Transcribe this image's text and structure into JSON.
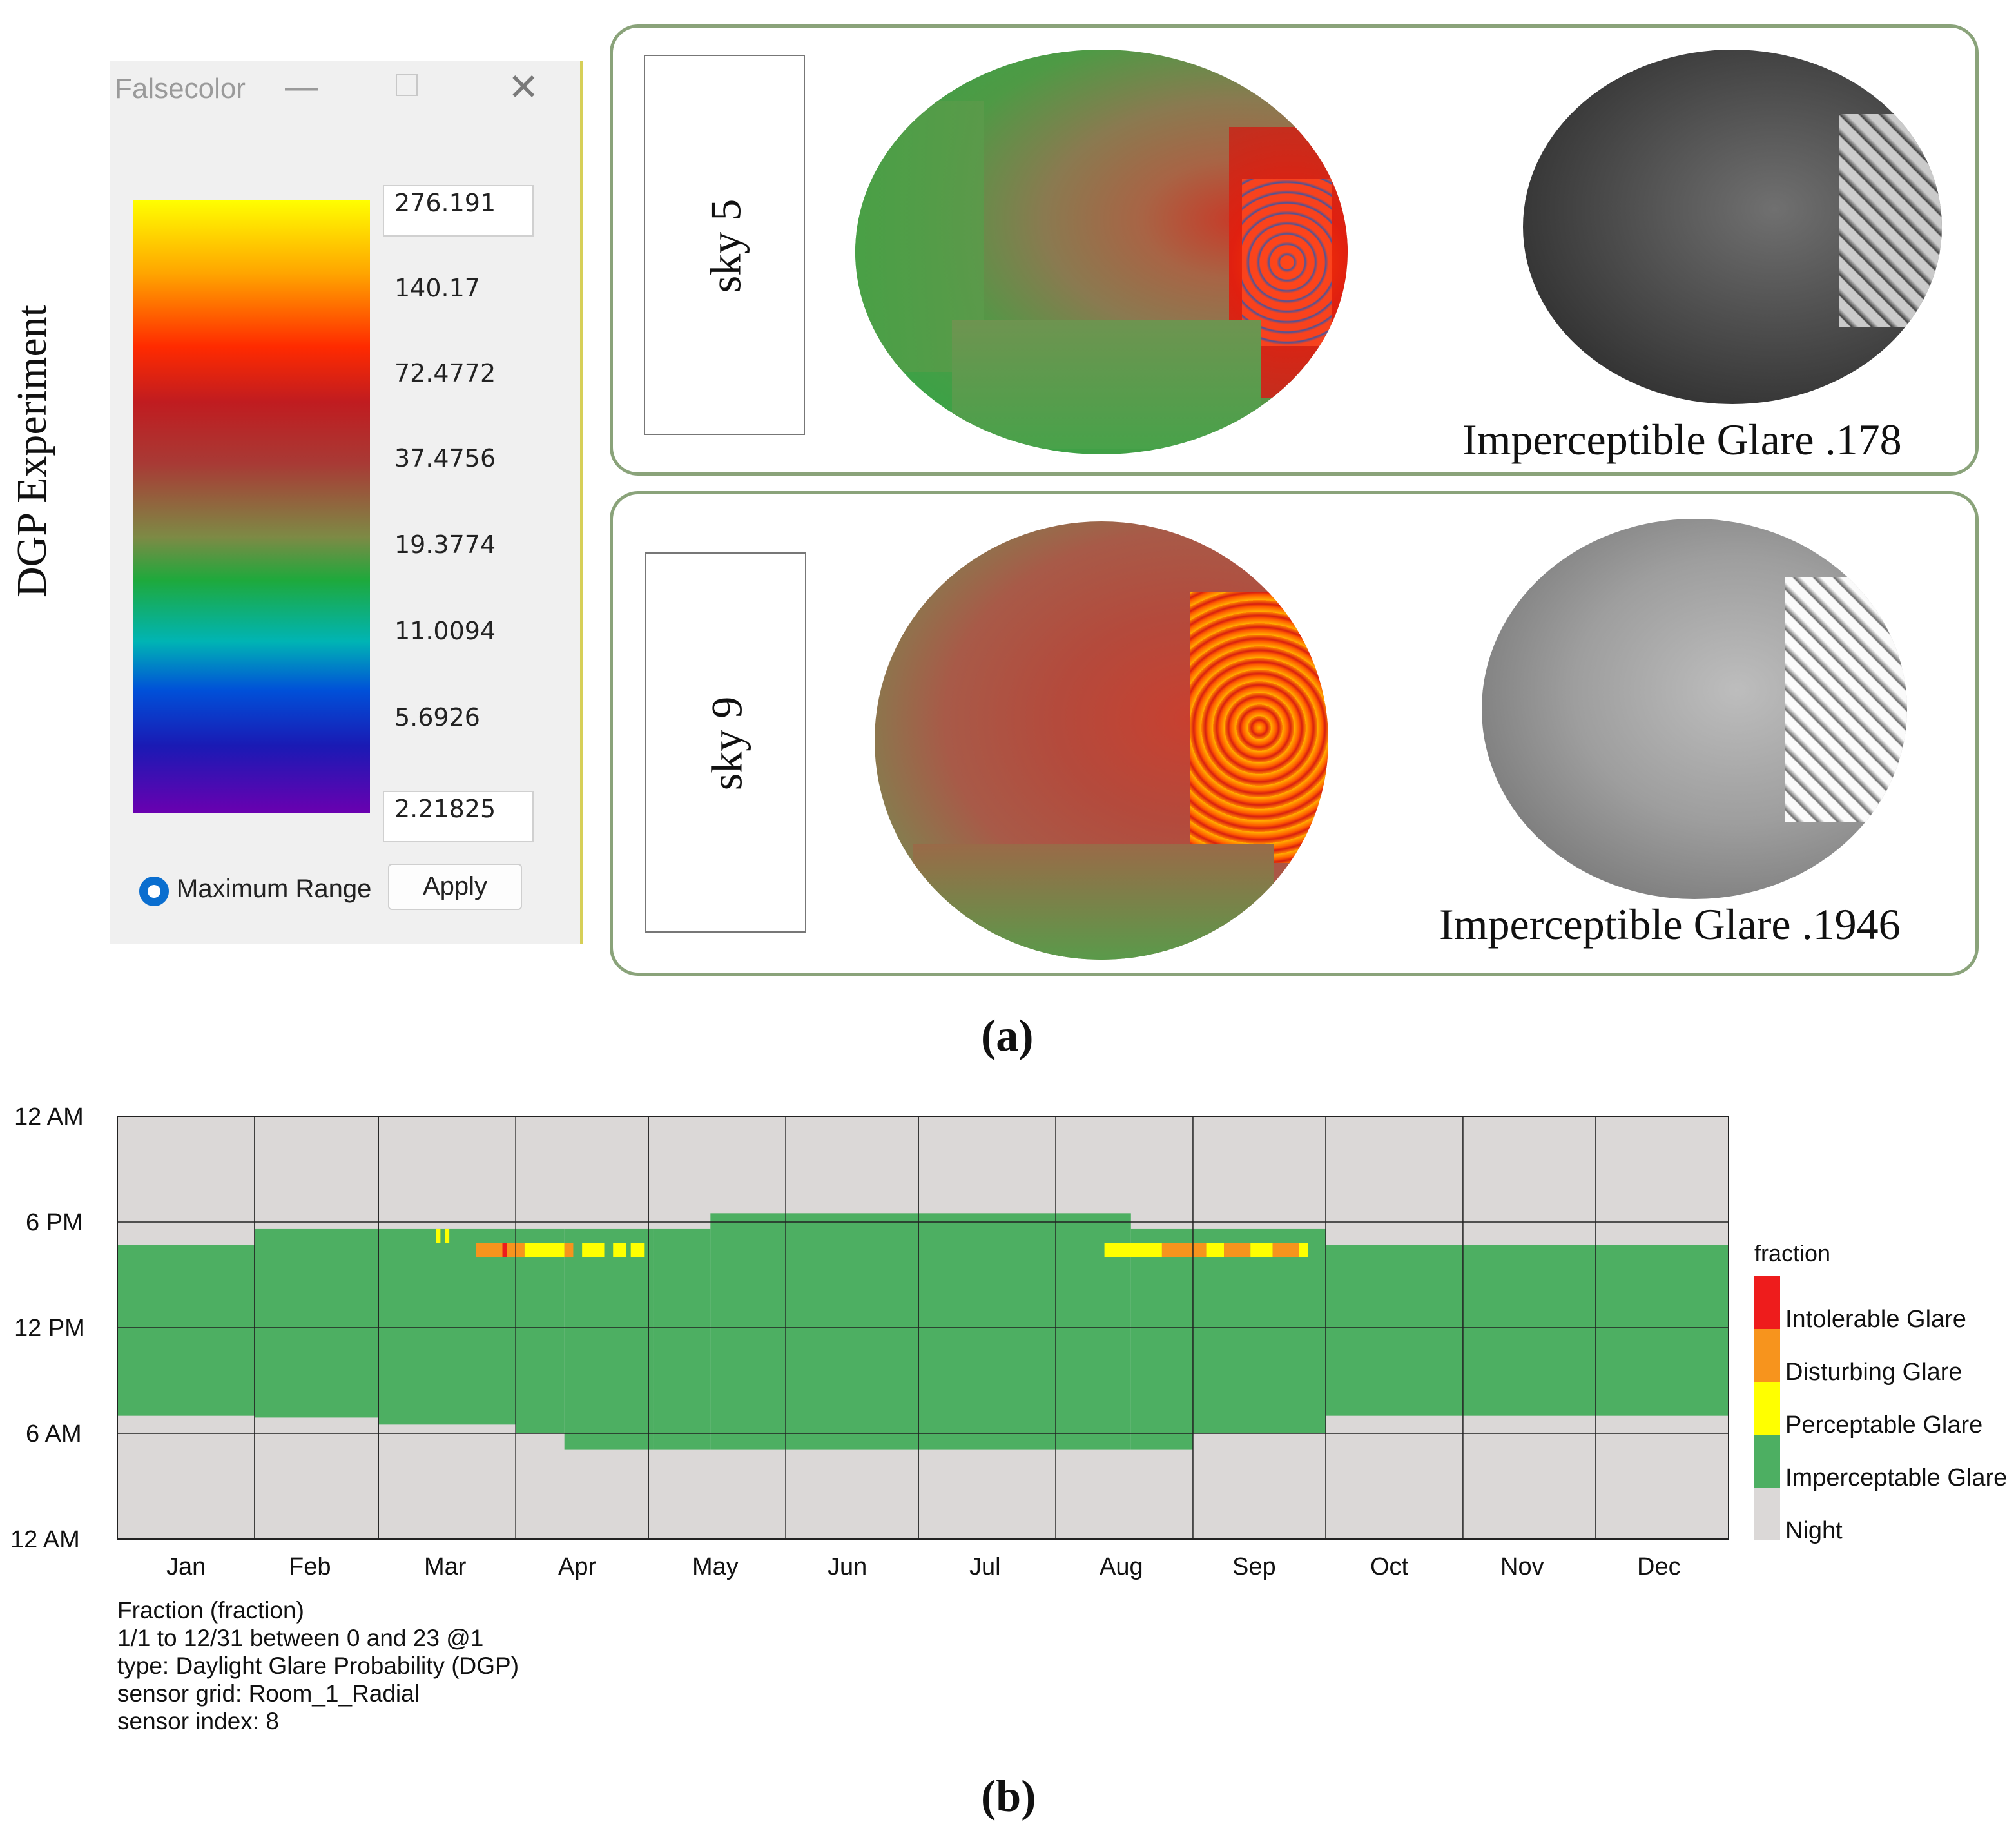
{
  "vertical_title": "DGP Experiment",
  "falsecolor": {
    "window_title": "Falsecolor",
    "minimize_glyph": "—",
    "close_glyph": "✕",
    "scale_labels": [
      "276.191",
      "140.17",
      "72.4772",
      "37.4756",
      "19.3774",
      "11.0094",
      "5.6926",
      "2.21825"
    ],
    "option_label": "Maximum Range",
    "apply_label": "Apply"
  },
  "panels": [
    {
      "sky_label": "sky 5",
      "glare_label": "Imperceptible Glare .178"
    },
    {
      "sky_label": "sky 9",
      "glare_label": "Imperceptible Glare .1946"
    }
  ],
  "captions": {
    "a": "(a)",
    "b": "(b)"
  },
  "colors": {
    "intolerable": "#ee1c1c",
    "disturbing": "#f7941d",
    "perceptible": "#ffff00",
    "imperceptible": "#4daf62",
    "night": "#dbd8d7",
    "panel_border": "#8aa37a"
  },
  "chart_data": {
    "type": "heatmap",
    "title": "",
    "y_ticks": [
      "12 AM",
      "6 PM",
      "12 PM",
      "6 AM",
      "12 AM"
    ],
    "x_categories": [
      "Jan",
      "Feb",
      "Mar",
      "Apr",
      "May",
      "Jun",
      "Jul",
      "Aug",
      "Sep",
      "Oct",
      "Nov",
      "Dec"
    ],
    "legend_title": "fraction",
    "legend": [
      "Intolerable Glare",
      "Disturbing Glare",
      "Perceptable Glare",
      "Imperceptable Glare",
      "Night"
    ],
    "day_range": [
      1,
      365
    ],
    "hour_range": [
      0,
      24
    ],
    "daylight_blocks": [
      {
        "d0": 1,
        "d1": 32,
        "h0": 7.0,
        "h1": 16.7
      },
      {
        "d0": 32,
        "d1": 60,
        "h0": 6.9,
        "h1": 17.6
      },
      {
        "d0": 60,
        "d1": 91,
        "h0": 6.5,
        "h1": 17.6
      },
      {
        "d0": 91,
        "d1": 102,
        "h0": 6.0,
        "h1": 17.6
      },
      {
        "d0": 102,
        "d1": 122,
        "h0": 5.1,
        "h1": 17.6
      },
      {
        "d0": 122,
        "d1": 135,
        "h0": 5.1,
        "h1": 17.6
      },
      {
        "d0": 135,
        "d1": 230,
        "h0": 5.1,
        "h1": 18.5
      },
      {
        "d0": 230,
        "d1": 244,
        "h0": 5.1,
        "h1": 17.6
      },
      {
        "d0": 244,
        "d1": 274,
        "h0": 6.0,
        "h1": 17.6
      },
      {
        "d0": 274,
        "d1": 305,
        "h0": 7.0,
        "h1": 16.7
      },
      {
        "d0": 305,
        "d1": 365,
        "h0": 7.0,
        "h1": 16.7
      }
    ],
    "glare_cells": [
      {
        "d0": 73,
        "d1": 74,
        "h0": 16.8,
        "h1": 17.6,
        "level": "perceptible"
      },
      {
        "d0": 75,
        "d1": 76,
        "h0": 16.8,
        "h1": 17.6,
        "level": "perceptible"
      },
      {
        "d0": 82,
        "d1": 93,
        "h0": 16.0,
        "h1": 16.8,
        "level": "disturbing"
      },
      {
        "d0": 88,
        "d1": 89,
        "h0": 16.0,
        "h1": 16.8,
        "level": "intolerable"
      },
      {
        "d0": 93,
        "d1": 102,
        "h0": 16.0,
        "h1": 16.8,
        "level": "perceptible"
      },
      {
        "d0": 102,
        "d1": 104,
        "h0": 16.0,
        "h1": 16.8,
        "level": "disturbing"
      },
      {
        "d0": 106,
        "d1": 111,
        "h0": 16.0,
        "h1": 16.8,
        "level": "perceptible"
      },
      {
        "d0": 113,
        "d1": 116,
        "h0": 16.0,
        "h1": 16.8,
        "level": "perceptible"
      },
      {
        "d0": 117,
        "d1": 120,
        "h0": 16.0,
        "h1": 16.8,
        "level": "perceptible"
      },
      {
        "d0": 224,
        "d1": 237,
        "h0": 16.0,
        "h1": 16.8,
        "level": "perceptible"
      },
      {
        "d0": 237,
        "d1": 247,
        "h0": 16.0,
        "h1": 16.8,
        "level": "disturbing"
      },
      {
        "d0": 247,
        "d1": 251,
        "h0": 16.0,
        "h1": 16.8,
        "level": "perceptible"
      },
      {
        "d0": 251,
        "d1": 257,
        "h0": 16.0,
        "h1": 16.8,
        "level": "disturbing"
      },
      {
        "d0": 257,
        "d1": 262,
        "h0": 16.0,
        "h1": 16.8,
        "level": "perceptible"
      },
      {
        "d0": 262,
        "d1": 268,
        "h0": 16.0,
        "h1": 16.8,
        "level": "disturbing"
      },
      {
        "d0": 268,
        "d1": 270,
        "h0": 16.0,
        "h1": 16.8,
        "level": "perceptible"
      }
    ],
    "info_lines": [
      "Fraction (fraction)",
      "1/1 to 12/31 between 0 and 23 @1",
      "type: Daylight Glare Probability (DGP)",
      "sensor grid: Room_1_Radial",
      "sensor index: 8"
    ]
  }
}
